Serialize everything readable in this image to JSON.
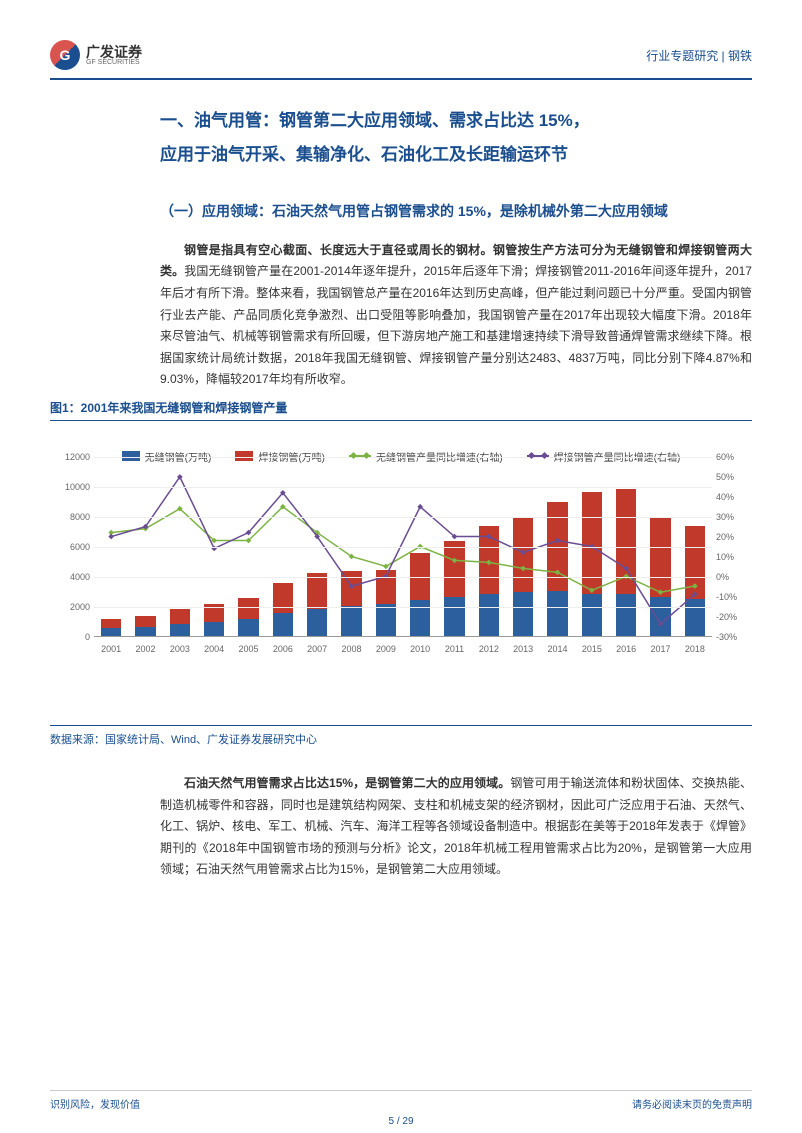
{
  "header": {
    "logo_letter": "G",
    "logo_cn": "广发证券",
    "logo_en": "GF SECURITIES",
    "breadcrumb": "行业专题研究 | 钢铁"
  },
  "main_title_line1": "一、油气用管：钢管第二大应用领域、需求占比达 15%，",
  "main_title_line2": "应用于油气开采、集输净化、石油化工及长距输运环节",
  "sub_heading": "（一）应用领域：石油天然气用管占钢管需求的 15%，是除机械外第二大应用领域",
  "para1_lead": "钢管是指具有空心截面、长度远大于直径或周长的钢材。钢管按生产方法可分为无缝钢管和焊接钢管两大类。",
  "para1_rest": "我国无缝钢管产量在2001-2014年逐年提升，2015年后逐年下滑；焊接钢管2011-2016年间逐年提升，2017年后才有所下滑。整体来看，我国钢管总产量在2016年达到历史高峰，但产能过剩问题已十分严重。受国内钢管行业去产能、产品同质化竞争激烈、出口受阻等影响叠加，我国钢管产量在2017年出现较大幅度下滑。2018年来尽管油气、机械等钢管需求有所回暖，但下游房地产施工和基建增速持续下滑导致普通焊管需求继续下降。根据国家统计局统计数据，2018年我国无缝钢管、焊接钢管产量分别达2483、4837万吨，同比分别下降4.87%和9.03%，降幅较2017年均有所收窄。",
  "figure_title": "图1：2001年来我国无缝钢管和焊接钢管产量",
  "chart": {
    "type": "stacked-bar-dual-axis-line",
    "years": [
      "2001",
      "2002",
      "2003",
      "2004",
      "2005",
      "2006",
      "2007",
      "2008",
      "2009",
      "2010",
      "2011",
      "2012",
      "2013",
      "2014",
      "2015",
      "2016",
      "2017",
      "2018"
    ],
    "seamless": [
      520,
      600,
      800,
      950,
      1100,
      1500,
      1800,
      2000,
      2100,
      2400,
      2600,
      2800,
      2900,
      3000,
      2800,
      2800,
      2600,
      2483
    ],
    "welded": [
      600,
      750,
      1000,
      1150,
      1400,
      2000,
      2400,
      2300,
      2300,
      3100,
      3700,
      4500,
      5000,
      5900,
      6800,
      7000,
      5300,
      4837
    ],
    "seamless_color": "#2b5f9e",
    "welded_color": "#c0392b",
    "seamless_growth": [
      22,
      24,
      34,
      18,
      18,
      35,
      22,
      10,
      5,
      15,
      8,
      7,
      4,
      2,
      -7,
      0,
      -8,
      -4.87
    ],
    "welded_growth": [
      20,
      25,
      50,
      14,
      22,
      42,
      20,
      -5,
      0,
      35,
      20,
      20,
      12,
      18,
      15,
      4,
      -24,
      -9.03
    ],
    "seamless_growth_color": "#7cb342",
    "welded_growth_color": "#6a4c93",
    "left_axis": {
      "min": 0,
      "max": 12000,
      "step": 2000
    },
    "right_axis": {
      "min": -30,
      "max": 60,
      "step": 10
    },
    "legend": {
      "seamless_bar": "无缝钢管(万吨)",
      "welded_bar": "焊接钢管(万吨)",
      "seamless_line": "无缝钢管产量同比增速(右轴)",
      "welded_line": "焊接钢管产量同比增速(右轴)"
    }
  },
  "data_source_label": "数据来源：",
  "data_source": "国家统计局、Wind、广发证券发展研究中心",
  "para2_lead": "石油天然气用管需求占比达15%，是钢管第二大的应用领域。",
  "para2_rest": "钢管可用于输送流体和粉状固体、交换热能、制造机械零件和容器，同时也是建筑结构网架、支柱和机械支架的经济钢材，因此可广泛应用于石油、天然气、化工、锅炉、核电、军工、机械、汽车、海洋工程等各领域设备制造中。根据彭在美等于2018年发表于《焊管》期刊的《2018年中国钢管市场的预测与分析》论文，2018年机械工程用管需求占比为20%，是钢管第一大应用领域；石油天然气用管需求占比为15%，是钢管第二大应用领域。",
  "footer": {
    "left": "识别风险，发现价值",
    "right": "请务必阅读末页的免责声明",
    "page": "5",
    "sep": " / ",
    "total": "29"
  }
}
